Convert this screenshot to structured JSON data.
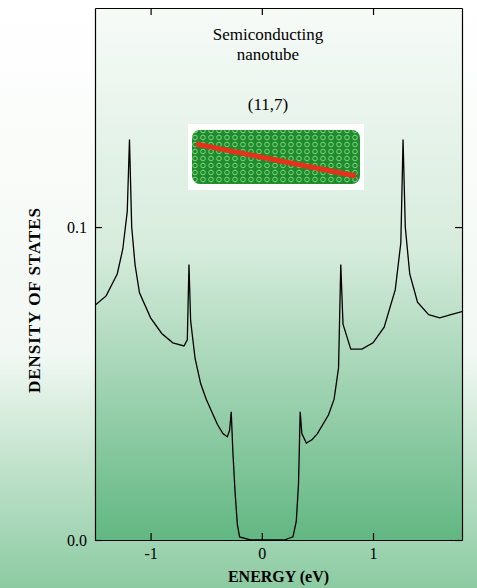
{
  "chart_data": {
    "type": "line",
    "title": "Semiconducting nanotube",
    "annotations": [
      "(11,7)"
    ],
    "x_label": "ENERGY (eV)",
    "y_label": "DENSITY OF STATES",
    "color": "#000000",
    "grid": false,
    "xlim": [
      -1.5,
      1.8
    ],
    "xticks": [
      -1,
      0,
      1
    ],
    "ylim": [
      0,
      0.17
    ],
    "yticks": [
      {
        "value": 0,
        "label": "0.0"
      },
      0.1
    ],
    "x": [
      -1.5,
      -1.4,
      -1.3,
      -1.25,
      -1.21,
      -1.19,
      -1.17,
      -1.14,
      -1.1,
      -1.0,
      -0.9,
      -0.8,
      -0.7,
      -0.67,
      -0.655,
      -0.64,
      -0.6,
      -0.55,
      -0.5,
      -0.45,
      -0.4,
      -0.35,
      -0.31,
      -0.29,
      -0.275,
      -0.26,
      -0.24,
      -0.22,
      -0.2,
      -0.1,
      0,
      0.1,
      0.2,
      0.28,
      0.31,
      0.33,
      0.345,
      0.36,
      0.4,
      0.45,
      0.5,
      0.6,
      0.65,
      0.69,
      0.71,
      0.73,
      0.8,
      0.9,
      1.0,
      1.1,
      1.2,
      1.25,
      1.27,
      1.29,
      1.33,
      1.4,
      1.5,
      1.6,
      1.7,
      1.8
    ],
    "values": [
      0.075,
      0.078,
      0.085,
      0.093,
      0.105,
      0.128,
      0.1,
      0.088,
      0.079,
      0.071,
      0.066,
      0.063,
      0.062,
      0.064,
      0.088,
      0.07,
      0.058,
      0.05,
      0.045,
      0.041,
      0.037,
      0.034,
      0.033,
      0.035,
      0.041,
      0.028,
      0.015,
      0.005,
      0.001,
      0,
      0,
      0,
      0,
      0.001,
      0.006,
      0.018,
      0.041,
      0.034,
      0.031,
      0.032,
      0.034,
      0.04,
      0.045,
      0.055,
      0.088,
      0.069,
      0.061,
      0.061,
      0.063,
      0.068,
      0.08,
      0.095,
      0.128,
      0.1,
      0.085,
      0.076,
      0.072,
      0.071,
      0.072,
      0.073
    ]
  }
}
